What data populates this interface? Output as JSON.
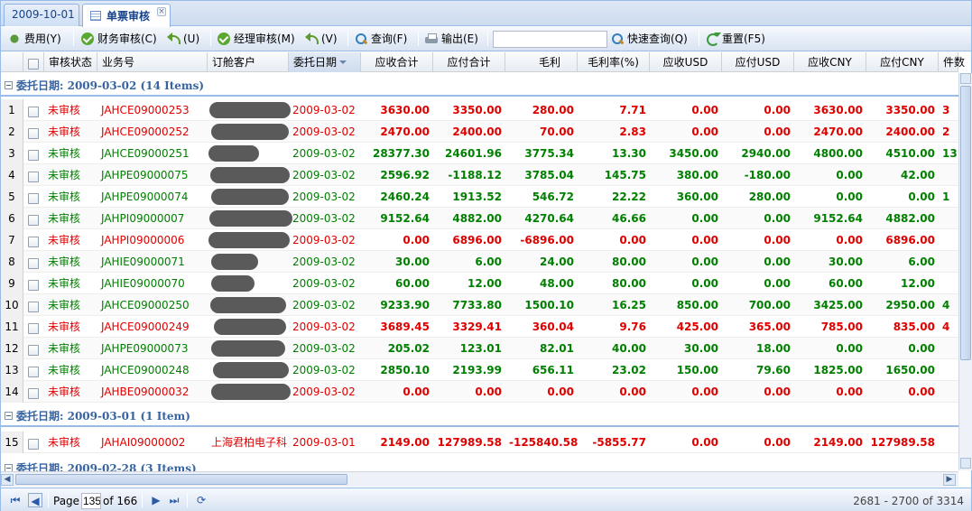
{
  "tabs": [
    {
      "label": "2009-10-01",
      "active": false
    },
    {
      "label": "单票审核",
      "active": true
    }
  ],
  "toolbar": {
    "fee": "费用(Y)",
    "finance_audit": "财务审核(C)",
    "undo_u": "(U)",
    "manager_audit": "经理审核(M)",
    "undo_v": "(V)",
    "query": "查询(F)",
    "export": "输出(E)",
    "quick_query_value": "",
    "quick_query": "快速查询(Q)",
    "reset": "重置(F5)"
  },
  "columns": [
    "审核状态",
    "业务号",
    "订舱客户",
    "委托日期",
    "应收合计",
    "应付合计",
    "毛利",
    "毛利率(%)",
    "应收USD",
    "应付USD",
    "应收CNY",
    "应付CNY",
    "件数"
  ],
  "groups": [
    {
      "label": "委托日期: 2009-03-02 (14 Items)"
    },
    {
      "label": "委托日期: 2009-03-01 (1 Item)"
    },
    {
      "label": "委托日期: 2009-02-28 (3 Items)"
    }
  ],
  "rows": [
    {
      "no": "1",
      "status": "未审核",
      "biz": "JAHCE09000253",
      "cust": "",
      "date": "2009-03-02",
      "recv": "3630.00",
      "pay": "3350.00",
      "profit": "280.00",
      "rate": "7.71",
      "rusd": "0.00",
      "pusd": "0.00",
      "rcny": "3630.00",
      "pcny": "3350.00",
      "pcs": "3",
      "color": "red"
    },
    {
      "no": "2",
      "status": "未审核",
      "biz": "JAHCE09000252",
      "cust": "",
      "date": "2009-03-02",
      "recv": "2470.00",
      "pay": "2400.00",
      "profit": "70.00",
      "rate": "2.83",
      "rusd": "0.00",
      "pusd": "0.00",
      "rcny": "2470.00",
      "pcny": "2400.00",
      "pcs": "2",
      "color": "red"
    },
    {
      "no": "3",
      "status": "未审核",
      "biz": "JAHCE09000251",
      "cust": "",
      "date": "2009-03-02",
      "recv": "28377.30",
      "pay": "24601.96",
      "profit": "3775.34",
      "rate": "13.30",
      "rusd": "3450.00",
      "pusd": "2940.00",
      "rcny": "4800.00",
      "pcny": "4510.00",
      "pcs": "13",
      "color": "green"
    },
    {
      "no": "4",
      "status": "未审核",
      "biz": "JAHPE09000075",
      "cust": "",
      "date": "2009-03-02",
      "recv": "2596.92",
      "pay": "-1188.12",
      "profit": "3785.04",
      "rate": "145.75",
      "rusd": "380.00",
      "pusd": "-180.00",
      "rcny": "0.00",
      "pcny": "42.00",
      "pcs": "",
      "color": "green"
    },
    {
      "no": "5",
      "status": "未审核",
      "biz": "JAHPE09000074",
      "cust": "",
      "date": "2009-03-02",
      "recv": "2460.24",
      "pay": "1913.52",
      "profit": "546.72",
      "rate": "22.22",
      "rusd": "360.00",
      "pusd": "280.00",
      "rcny": "0.00",
      "pcny": "0.00",
      "pcs": "1",
      "color": "green"
    },
    {
      "no": "6",
      "status": "未审核",
      "biz": "JAHPI09000007",
      "cust": "",
      "date": "2009-03-02",
      "recv": "9152.64",
      "pay": "4882.00",
      "profit": "4270.64",
      "rate": "46.66",
      "rusd": "0.00",
      "pusd": "0.00",
      "rcny": "9152.64",
      "pcny": "4882.00",
      "pcs": "",
      "color": "green"
    },
    {
      "no": "7",
      "status": "未审核",
      "biz": "JAHPI09000006",
      "cust": "",
      "date": "2009-03-02",
      "recv": "0.00",
      "pay": "6896.00",
      "profit": "-6896.00",
      "rate": "0.00",
      "rusd": "0.00",
      "pusd": "0.00",
      "rcny": "0.00",
      "pcny": "6896.00",
      "pcs": "",
      "color": "red"
    },
    {
      "no": "8",
      "status": "未审核",
      "biz": "JAHIE09000071",
      "cust": "",
      "date": "2009-03-02",
      "recv": "30.00",
      "pay": "6.00",
      "profit": "24.00",
      "rate": "80.00",
      "rusd": "0.00",
      "pusd": "0.00",
      "rcny": "30.00",
      "pcny": "6.00",
      "pcs": "",
      "color": "green"
    },
    {
      "no": "9",
      "status": "未审核",
      "biz": "JAHIE09000070",
      "cust": "",
      "date": "2009-03-02",
      "recv": "60.00",
      "pay": "12.00",
      "profit": "48.00",
      "rate": "80.00",
      "rusd": "0.00",
      "pusd": "0.00",
      "rcny": "60.00",
      "pcny": "12.00",
      "pcs": "",
      "color": "green"
    },
    {
      "no": "10",
      "status": "未审核",
      "biz": "JAHCE09000250",
      "cust": "",
      "date": "2009-03-02",
      "recv": "9233.90",
      "pay": "7733.80",
      "profit": "1500.10",
      "rate": "16.25",
      "rusd": "850.00",
      "pusd": "700.00",
      "rcny": "3425.00",
      "pcny": "2950.00",
      "pcs": "4",
      "color": "green"
    },
    {
      "no": "11",
      "status": "未审核",
      "biz": "JAHCE09000249",
      "cust": "",
      "date": "2009-03-02",
      "recv": "3689.45",
      "pay": "3329.41",
      "profit": "360.04",
      "rate": "9.76",
      "rusd": "425.00",
      "pusd": "365.00",
      "rcny": "785.00",
      "pcny": "835.00",
      "pcs": "4",
      "color": "red"
    },
    {
      "no": "12",
      "status": "未审核",
      "biz": "JAHPE09000073",
      "cust": "",
      "date": "2009-03-02",
      "recv": "205.02",
      "pay": "123.01",
      "profit": "82.01",
      "rate": "40.00",
      "rusd": "30.00",
      "pusd": "18.00",
      "rcny": "0.00",
      "pcny": "0.00",
      "pcs": "",
      "color": "green"
    },
    {
      "no": "13",
      "status": "未审核",
      "biz": "JAHCE09000248",
      "cust": "",
      "date": "2009-03-02",
      "recv": "2850.10",
      "pay": "2193.99",
      "profit": "656.11",
      "rate": "23.02",
      "rusd": "150.00",
      "pusd": "79.60",
      "rcny": "1825.00",
      "pcny": "1650.00",
      "pcs": "",
      "color": "green"
    },
    {
      "no": "14",
      "status": "未审核",
      "biz": "JAHBE09000032",
      "cust": "",
      "date": "2009-03-02",
      "recv": "0.00",
      "pay": "0.00",
      "profit": "0.00",
      "rate": "0.00",
      "rusd": "0.00",
      "pusd": "0.00",
      "rcny": "0.00",
      "pcny": "0.00",
      "pcs": "",
      "color": "red"
    },
    {
      "no": "15",
      "status": "未审核",
      "biz": "JAHAI09000002",
      "cust": "上海君柏电子科",
      "date": "2009-03-01",
      "recv": "2149.00",
      "pay": "127989.58",
      "profit": "-125840.58",
      "rate": "-5855.77",
      "rusd": "0.00",
      "pusd": "0.00",
      "rcny": "2149.00",
      "pcny": "127989.58",
      "pcs": "",
      "color": "red"
    }
  ],
  "pager": {
    "page_label": "Page",
    "page_value": "135",
    "of_label": "of 166",
    "summary": "2681 - 2700 of 3314"
  },
  "colors": {
    "red": "#e00000",
    "green": "#008000",
    "header": "#3764a0"
  }
}
